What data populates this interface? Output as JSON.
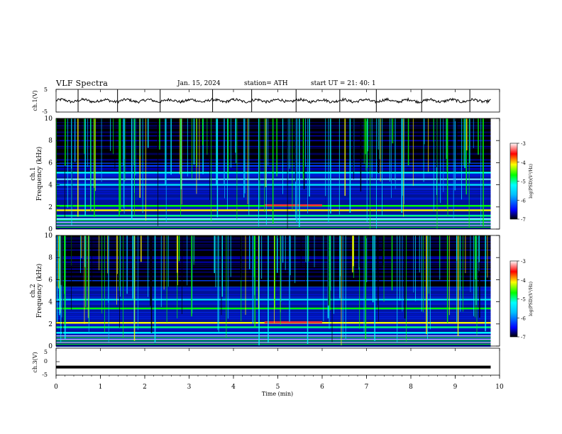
{
  "header": {
    "title": "VLF  Spectra",
    "date": "Jan. 15, 2024",
    "station": "station= ATH",
    "start": "start  UT  =   21: 40: 1"
  },
  "chart_data": [
    {
      "type": "line",
      "panel": "ch1-waveform",
      "ylabel": "ch.1(V)",
      "ylim": [
        -5,
        5
      ],
      "y_ticks": [
        "5",
        "-5"
      ],
      "level": 0,
      "xlim": [
        0,
        10
      ],
      "color": "#000000"
    },
    {
      "type": "heatmap",
      "panel": "ch1-spectrogram",
      "ylabel": "ch.1\nFrequency (kHz)",
      "ylim": [
        0,
        10
      ],
      "y_ticks": [
        "0",
        "2",
        "4",
        "6",
        "8",
        "10"
      ],
      "xlim": [
        0,
        9.8
      ],
      "colorbar": {
        "label": "log(PSD)(V²/Hz)",
        "range": [
          -7,
          -3
        ],
        "ticks": [
          "-3",
          "-4",
          "-5",
          "-6",
          "-7"
        ]
      },
      "dominant_bands_khz": [
        0.9,
        1.2,
        1.7,
        2.1,
        4.0,
        4.5,
        5.1
      ]
    },
    {
      "type": "heatmap",
      "panel": "ch2-spectrogram",
      "ylabel": "ch.2\nFrequency (kHz)",
      "ylim": [
        0,
        10
      ],
      "y_ticks": [
        "0",
        "2",
        "4",
        "6",
        "8",
        "10"
      ],
      "xlim": [
        0,
        9.8
      ],
      "colorbar": {
        "label": "log(PSD)(V²/Hz)",
        "range": [
          -7,
          -3
        ],
        "ticks": [
          "-3",
          "-4",
          "-5",
          "-6",
          "-7"
        ]
      },
      "dominant_bands_khz": [
        1.2,
        1.7,
        2.1,
        3.4,
        4.2
      ]
    },
    {
      "type": "line",
      "panel": "ch3-waveform",
      "ylabel": "ch.3(V)",
      "ylim": [
        -5,
        5
      ],
      "y_ticks": [
        "5",
        "0",
        "-5"
      ],
      "level": -2,
      "xlim": [
        0,
        9.8
      ],
      "color": "#000000"
    }
  ],
  "x_axis": {
    "label": "Time  (min)",
    "ticks": [
      "0",
      "1",
      "2",
      "3",
      "4",
      "5",
      "6",
      "7",
      "8",
      "9",
      "10"
    ],
    "range": [
      0,
      10
    ]
  },
  "colors": {
    "colormap": [
      "#000000",
      "#0000ff",
      "#00bfff",
      "#00ffff",
      "#00ff00",
      "#ffff00",
      "#ff0000",
      "#ffffff"
    ]
  }
}
